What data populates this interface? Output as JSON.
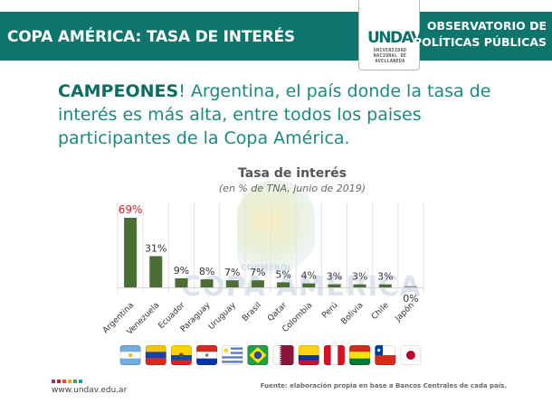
{
  "header": {
    "title": "COPA AMÉRICA: TASA DE INTERÉS",
    "logo": {
      "mark": "UNDAV",
      "lines": [
        "UNIVERSIDAD",
        "NACIONAL DE",
        "AVELLANEDA"
      ]
    },
    "observatory": [
      "OBSERVATORIO DE",
      "POLÍTICAS PÚBLICAS"
    ]
  },
  "headline": {
    "bold": "CAMPEONES",
    "rest": "! Argentina, el país donde la tasa de interés es más alta, entre todos los paises participantes de la Copa América."
  },
  "watermark": {
    "small": "CONMEBOL",
    "big": "COPA AMERICA"
  },
  "chart_data": {
    "type": "bar",
    "title": "Tasa de interés",
    "subtitle": "(en % de TNA, junio de 2019)",
    "xlabel": "",
    "ylabel": "",
    "ylim": [
      0,
      69
    ],
    "grid": "vertical separators",
    "categories": [
      "Argentina",
      "Venezuela",
      "Ecuador",
      "Paraguay",
      "Uruguay",
      "Brasil",
      "Qatar",
      "Colombia",
      "Perú",
      "Bolivia",
      "Chile",
      "Japón"
    ],
    "values": [
      69,
      31,
      9,
      8,
      7,
      7,
      5,
      4,
      3,
      3,
      3,
      0
    ],
    "labels": [
      "69%",
      "31%",
      "9%",
      "8%",
      "7%",
      "7%",
      "5%",
      "4%",
      "3%",
      "3%",
      "3%",
      "0%"
    ],
    "highlight_index": 0,
    "colors": {
      "bar": "#4a6e33",
      "highlight_label": "#c8202e",
      "label": "#333333",
      "zero_bar": "#999999"
    }
  },
  "flags": [
    "argentina",
    "venezuela",
    "ecuador",
    "paraguay",
    "uruguay",
    "brasil",
    "qatar",
    "colombia",
    "peru",
    "bolivia",
    "chile",
    "japon"
  ],
  "footer": {
    "url": "www.undav.edu.ar",
    "source": "Fuente: elaboración propia en base a Bancos Centrales de cada país.",
    "dot_colors": [
      "#8e3a7a",
      "#c8202e",
      "#e64a3b",
      "#f0a81e",
      "#3aa35a",
      "#1f9ab0"
    ]
  }
}
